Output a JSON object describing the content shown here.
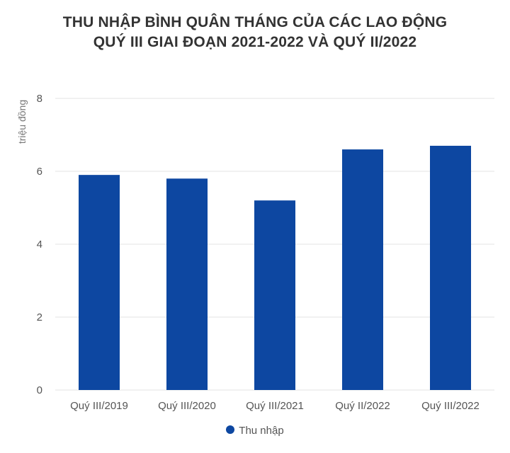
{
  "chart_data": {
    "type": "bar",
    "title_lines": [
      "THU NHẬP BÌNH QUÂN THÁNG CỦA CÁC LAO ĐỘNG",
      "QUÝ III GIAI ĐOẠN 2021-2022 VÀ QUÝ II/2022"
    ],
    "ylabel": "triệu đồng",
    "xlabel": "",
    "categories": [
      "Quý III/2019",
      "Quý III/2020",
      "Quý III/2021",
      "Quý II/2022",
      "Quý III/2022"
    ],
    "series": [
      {
        "name": "Thu nhập",
        "values": [
          5.9,
          5.8,
          5.2,
          6.6,
          6.7
        ]
      }
    ],
    "ylim": [
      0,
      8
    ],
    "yticks": [
      0,
      2,
      4,
      6,
      8
    ],
    "grid": true,
    "legend_position": "bottom",
    "colors": {
      "bar": "#0d47a1",
      "grid": "#e3e3e3",
      "axis_text": "#555555"
    }
  }
}
